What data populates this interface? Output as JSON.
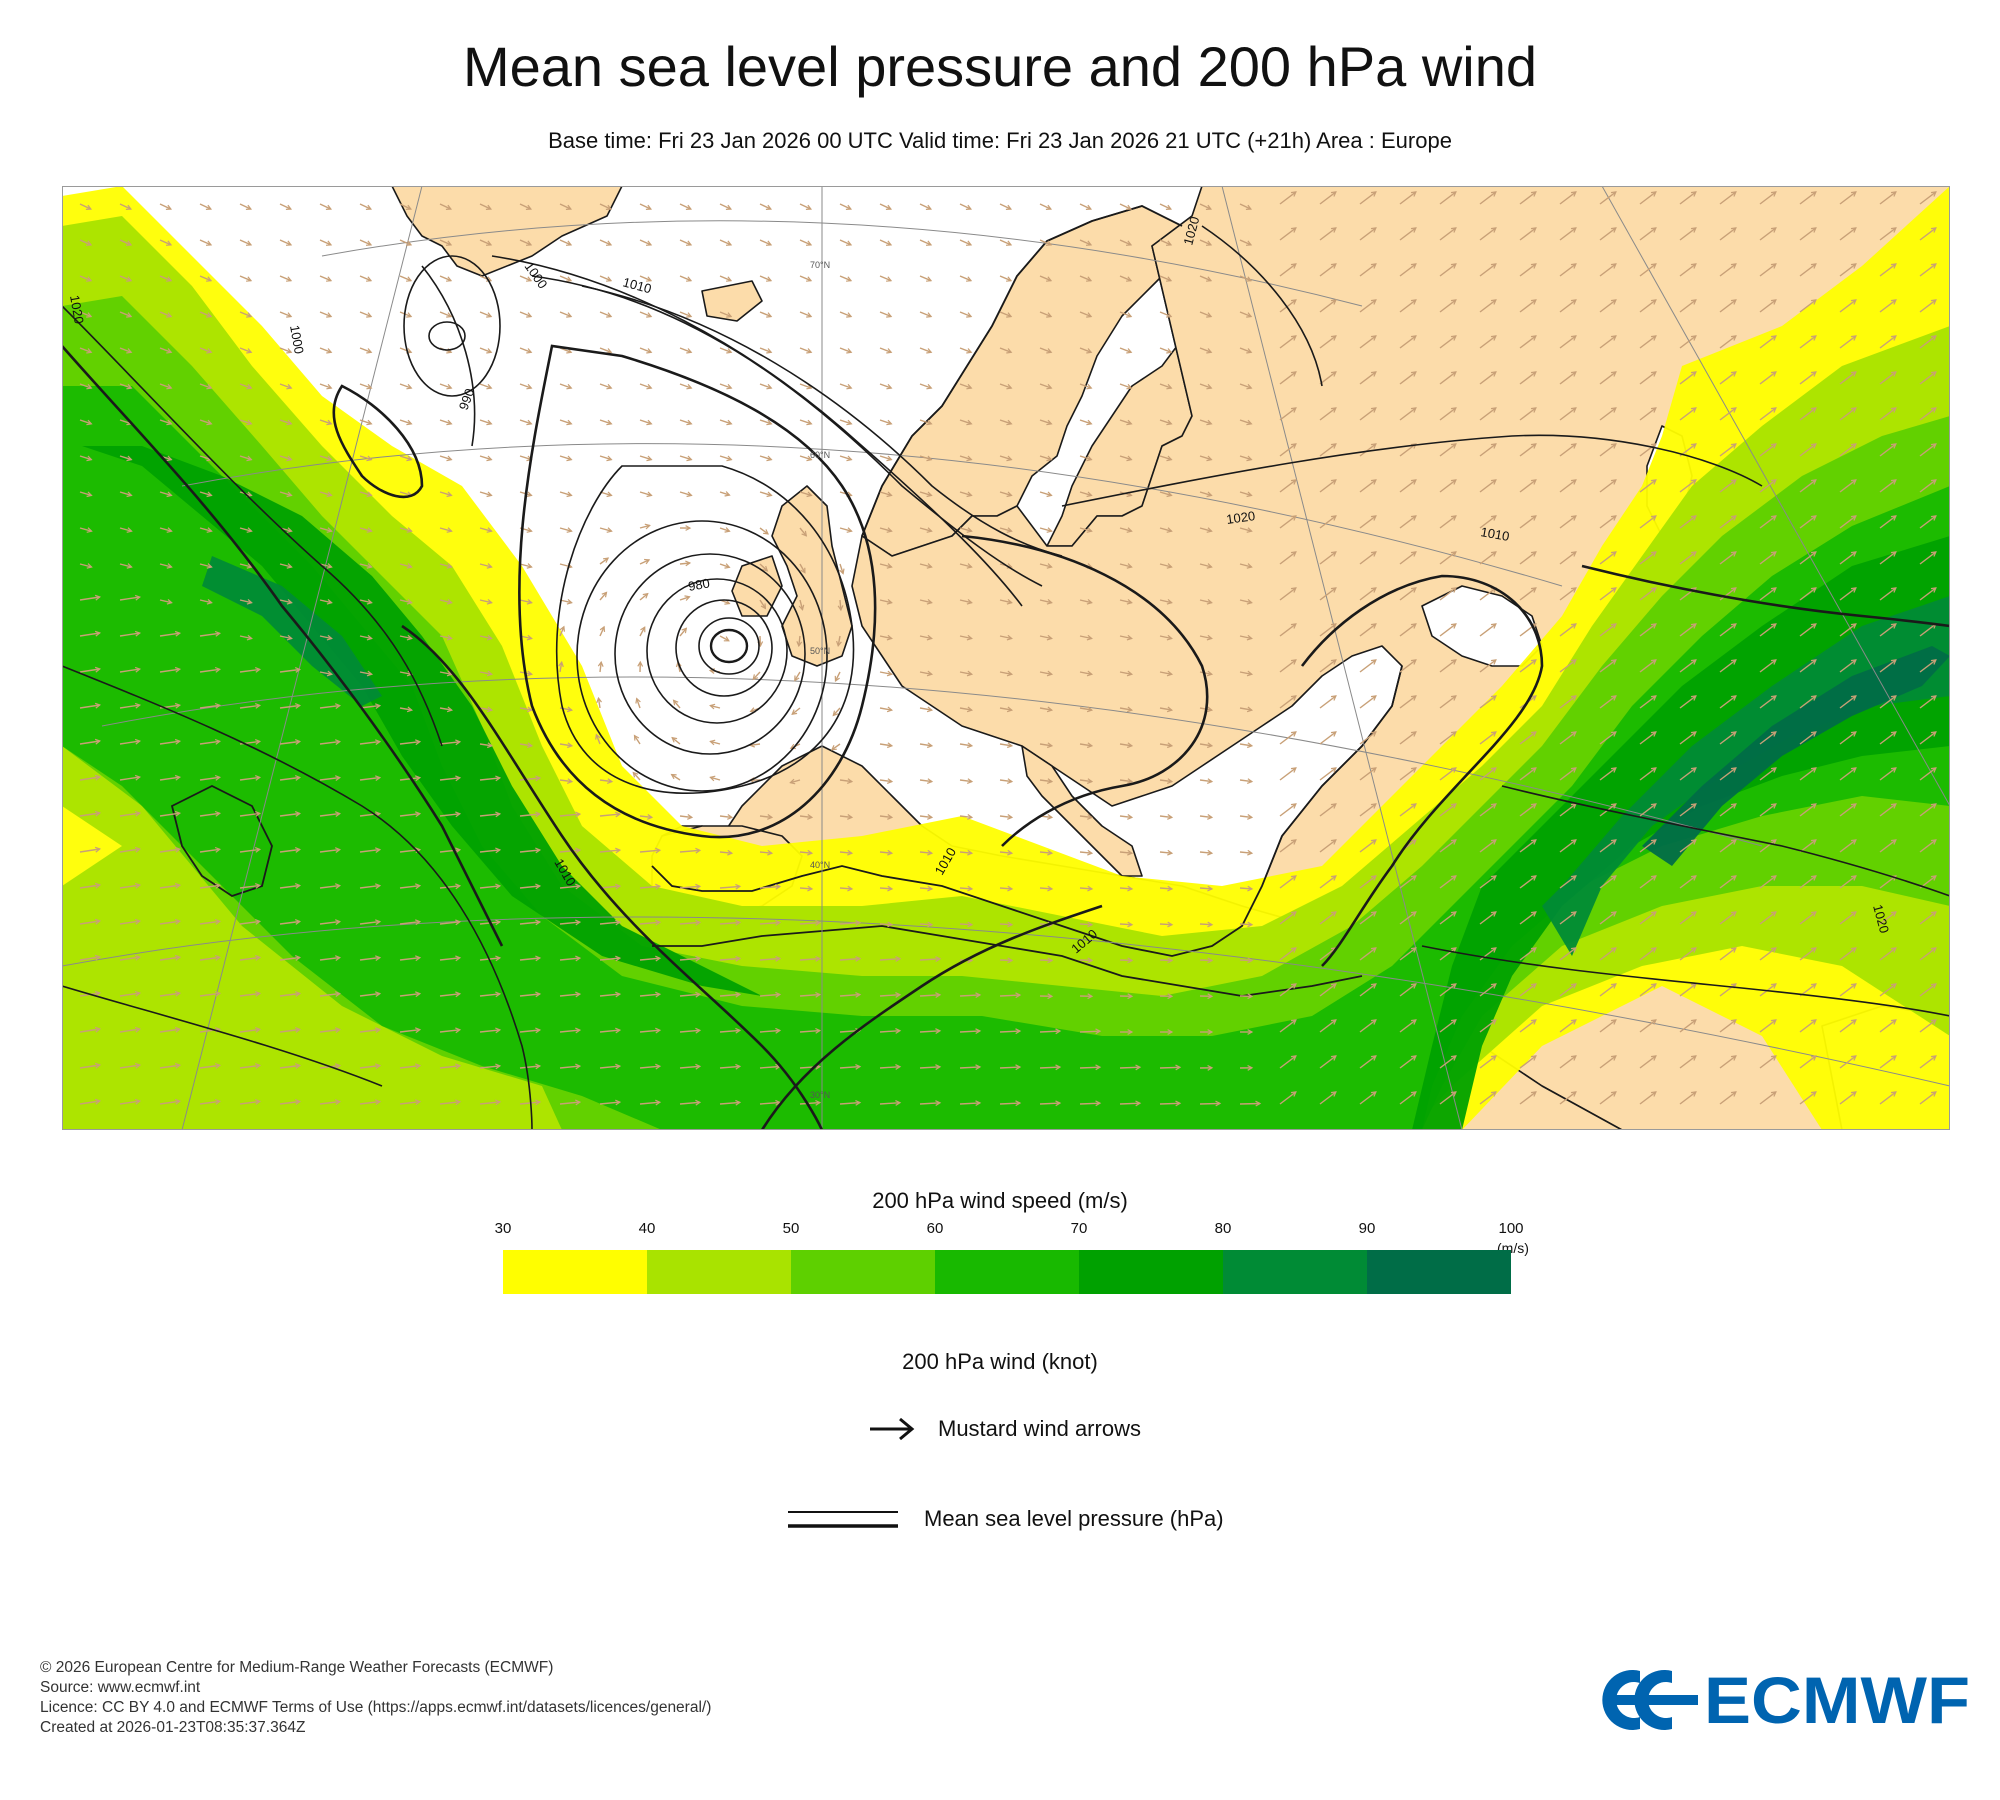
{
  "header": {
    "title": "Mean sea level pressure and 200 hPa wind",
    "subtitle": "Base time: Fri 23 Jan 2026 00 UTC Valid time: Fri 23 Jan 2026 21 UTC (+21h) Area : Europe"
  },
  "map": {
    "area": "Europe",
    "isobar_labels": [
      "1000",
      "1010",
      "1020",
      "990",
      "980",
      "1010",
      "1010",
      "1020",
      "1010",
      "1020",
      "1020",
      "1000",
      "1010",
      "1010",
      "1010",
      "1010"
    ],
    "latitude_labels": [
      "70°N",
      "60°N",
      "50°N",
      "40°N",
      "30°N"
    ],
    "colors": {
      "land": "#fcdcaa",
      "sea": "#ffffff",
      "coast": "#1a1a1a",
      "isobar": "#1a1a1a",
      "arrow": "#c8a077",
      "graticule": "#8a8a8a"
    }
  },
  "colorbar": {
    "title": "200 hPa wind speed (m/s)",
    "unit": "(m/s)",
    "ticks": [
      "30",
      "40",
      "50",
      "60",
      "70",
      "80",
      "90",
      "100"
    ],
    "colors": [
      "#fffe00",
      "#a9e300",
      "#5ed000",
      "#18b900",
      "#00a100",
      "#008b35",
      "#006d47"
    ]
  },
  "legend": {
    "wind_title": "200 hPa wind (knot)",
    "arrow_label": "Mustard wind arrows",
    "mslp_label": "Mean sea level pressure (hPa)"
  },
  "footer": {
    "copyright": "© 2026 European Centre for Medium-Range Weather Forecasts (ECMWF)",
    "source": "Source: www.ecmwf.int",
    "licence": "Licence: CC BY 4.0 and ECMWF Terms of Use (https://apps.ecmwf.int/datasets/licences/general/)",
    "created": "Created at 2026-01-23T08:35:37.364Z"
  },
  "logo": {
    "text": "ECMWF",
    "color": "#0064b0"
  }
}
